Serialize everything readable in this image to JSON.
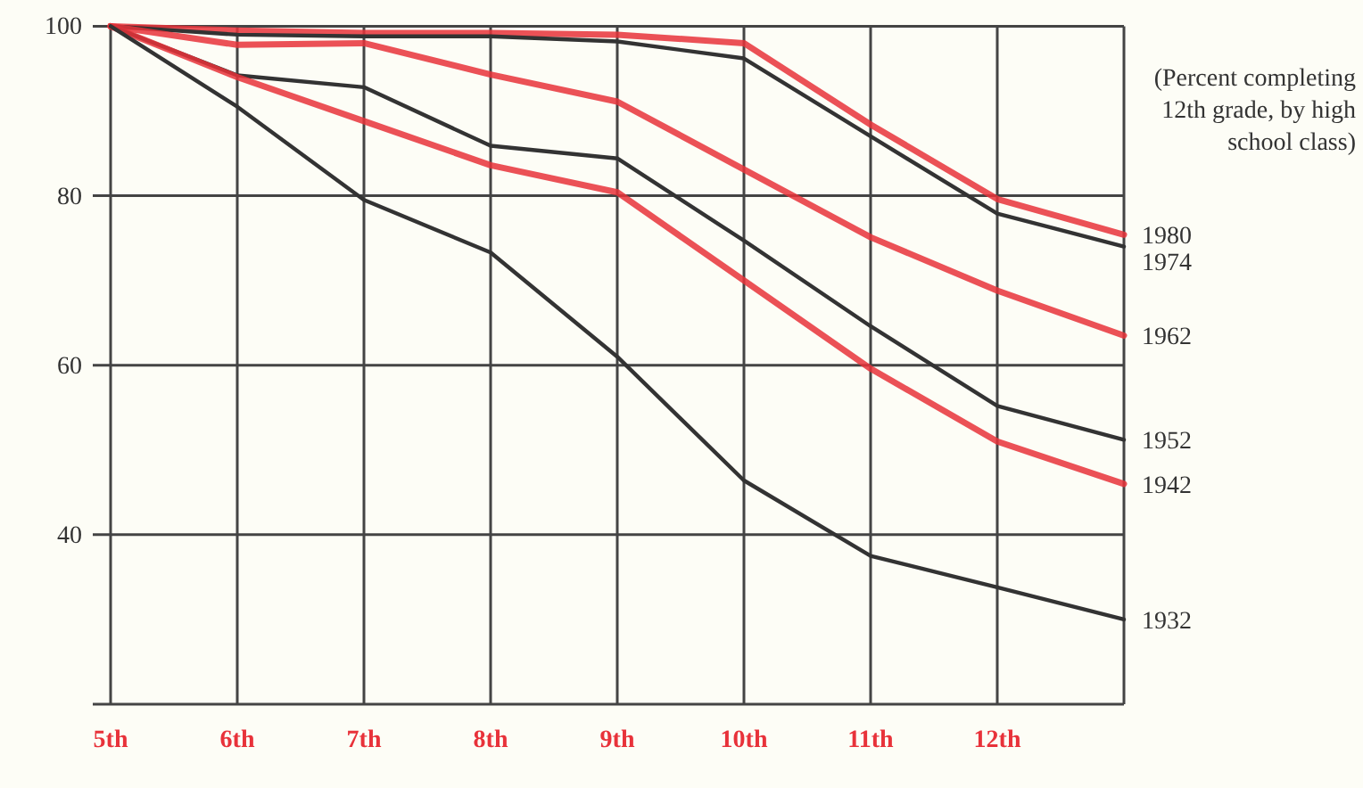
{
  "chart_data": {
    "type": "line",
    "categories": [
      "5th",
      "6th",
      "7th",
      "8th",
      "9th",
      "10th",
      "11th",
      "12th",
      null
    ],
    "ylim": [
      20,
      100
    ],
    "yticks": [
      {
        "value": 20,
        "label": null
      },
      40,
      60,
      80,
      100
    ],
    "grid": true,
    "marker": "none",
    "line_style": "solid",
    "annotations": [
      "(Percent completing 12th grade, by high school class)"
    ],
    "series": [
      {
        "name": "1980",
        "color": "#e8323a",
        "values": [
          100,
          99.5,
          99.2,
          99.2,
          99,
          98,
          88.4,
          79.6,
          75.4
        ]
      },
      {
        "name": "1974",
        "color": "#333333",
        "values": [
          100,
          99,
          98.8,
          98.8,
          98.2,
          96.2,
          87,
          77.9,
          74
        ]
      },
      {
        "name": "1962",
        "color": "#e8323a",
        "values": [
          100,
          97.8,
          98,
          94.3,
          91.1,
          83.1,
          75.1,
          68.8,
          63.5
        ]
      },
      {
        "name": "1952",
        "color": "#333333",
        "values": [
          100,
          94.2,
          92.8,
          85.9,
          84.4,
          74.7,
          64.6,
          55.2,
          51.2
        ]
      },
      {
        "name": "1942",
        "color": "#e8323a",
        "values": [
          100,
          94,
          88.8,
          83.6,
          80.4,
          70,
          59.6,
          51,
          46
        ]
      },
      {
        "name": "1932",
        "color": "#333333",
        "values": [
          100,
          90.5,
          79.5,
          73.3,
          61,
          46.4,
          37.5,
          33.8,
          30
        ]
      }
    ]
  }
}
